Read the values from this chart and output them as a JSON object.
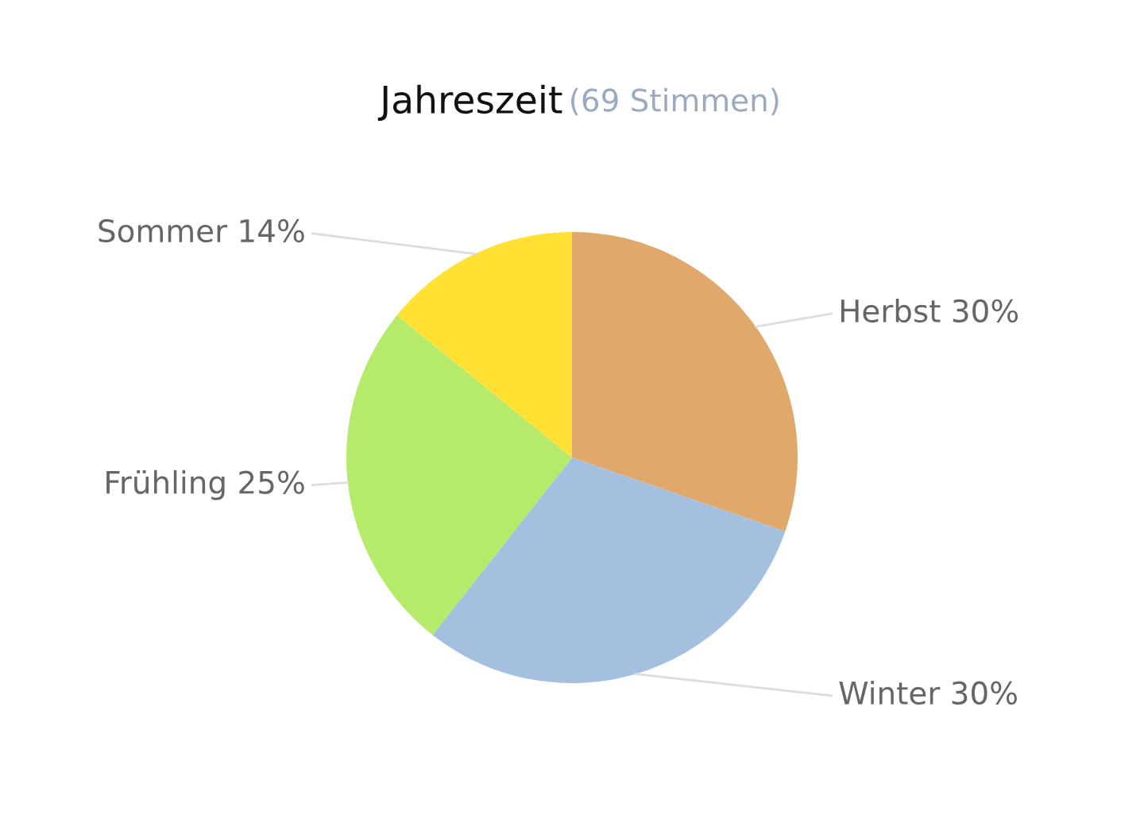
{
  "chart_data": {
    "type": "pie",
    "title": "Jahreszeit",
    "subtitle": "(69 Stimmen)",
    "categories": [
      "Herbst",
      "Winter",
      "Frühling",
      "Sommer"
    ],
    "values": [
      30,
      30,
      25,
      14
    ],
    "value_labels": [
      "30%",
      "30%",
      "25%",
      "14%"
    ],
    "colors": [
      "#e0a86a",
      "#a5c0df",
      "#b5ea6b",
      "#ffe033"
    ],
    "legend": false
  }
}
